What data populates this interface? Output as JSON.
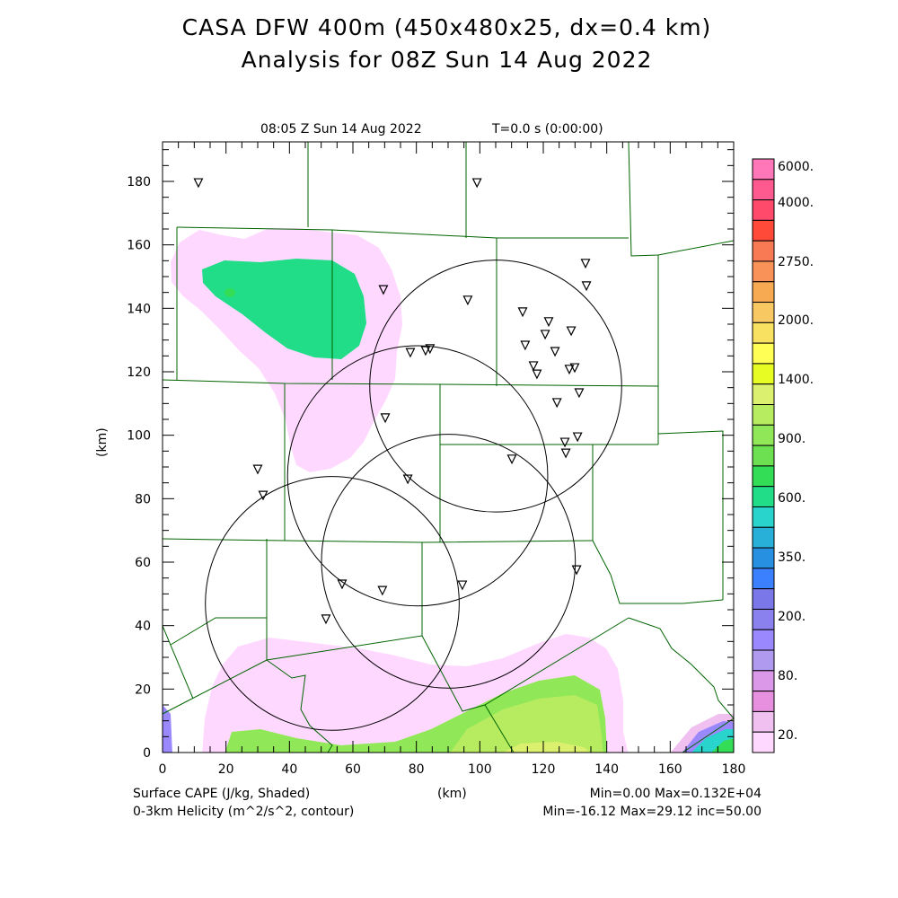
{
  "header": {
    "title_line1": "CASA DFW 400m (450x480x25, dx=0.4 km)",
    "title_line2": "Analysis for 08Z Sun 14 Aug 2022",
    "valid_time": "08:05 Z Sun 14 Aug 2022",
    "elapsed": "T=0.0 s (0:00:00)"
  },
  "footer": {
    "field1": "Surface CAPE (J/kg, Shaded)",
    "field2": "0-3km Helicity (m^2/s^2, contour)",
    "xunit": "(km)",
    "stats1": "Min=0.00 Max=0.132E+04",
    "stats2": "Min=-16.12 Max=29.12 inc=50.00"
  },
  "chart_data": {
    "type": "heatmap",
    "title": "CASA DFW 400m (450x480x25, dx=0.4 km) Analysis for 08Z Sun 14 Aug 2022",
    "xlabel": "(km)",
    "ylabel": "(km)",
    "xlim": [
      0,
      180
    ],
    "ylim": [
      0,
      192
    ],
    "xticks": [
      "0",
      "20",
      "40",
      "60",
      "80",
      "100",
      "120",
      "140",
      "160",
      "180"
    ],
    "yticks": [
      "0",
      "20",
      "40",
      "60",
      "80",
      "100",
      "120",
      "140",
      "160",
      "180"
    ],
    "shaded_field": "Surface CAPE (J/kg)",
    "shaded_min": 0.0,
    "shaded_max": 1320,
    "contour_field": "0-3km Helicity (m^2/s^2)",
    "contour_min": -16.12,
    "contour_max": 29.12,
    "contour_inc": 50.0,
    "colorbar": {
      "labels": [
        "6000.",
        "4000.",
        "2750.",
        "2000.",
        "1400.",
        "900.",
        "600.",
        "350.",
        "200.",
        "80.",
        "20."
      ],
      "colors": [
        "#ff77b8",
        "#ff5a90",
        "#ff4a6c",
        "#ff4a3a",
        "#f87a55",
        "#f89258",
        "#f8aa52",
        "#f8c862",
        "#f8e060",
        "#ffff55",
        "#e6fc22",
        "#dcf070",
        "#b8ec60",
        "#90e858",
        "#6ce050",
        "#33dd55",
        "#22dd88",
        "#28d4cc",
        "#28b0d8",
        "#2890e0",
        "#3a80ff",
        "#7a78e8",
        "#8a80ee",
        "#9a88ff",
        "#b09af0",
        "#dc98e8",
        "#e890e0",
        "#f0c0f0",
        "#ffd8ff"
      ]
    },
    "range_rings_km": [
      {
        "x": 105,
        "y": 115.5,
        "r": 39.7
      },
      {
        "x": 80.4,
        "y": 87.2,
        "r": 41
      },
      {
        "x": 90.1,
        "y": 60.3,
        "r": 40
      },
      {
        "x": 53.5,
        "y": 47.0,
        "r": 40
      }
    ],
    "stations_km": [
      [
        11.3,
        179.7
      ],
      [
        99.1,
        179.7
      ],
      [
        133.3,
        154.3
      ],
      [
        133.6,
        147.2
      ],
      [
        69.6,
        146.0
      ],
      [
        96.2,
        142.7
      ],
      [
        113.5,
        139.0
      ],
      [
        121.7,
        135.9
      ],
      [
        120.6,
        131.9
      ],
      [
        128.8,
        133.0
      ],
      [
        114.3,
        128.5
      ],
      [
        123.7,
        126.5
      ],
      [
        78.1,
        126.2
      ],
      [
        82.9,
        126.8
      ],
      [
        84.3,
        127.4
      ],
      [
        116.9,
        122.0
      ],
      [
        118.0,
        119.4
      ],
      [
        129.9,
        121.4
      ],
      [
        128.2,
        120.9
      ],
      [
        131.3,
        113.5
      ],
      [
        124.3,
        110.4
      ],
      [
        70.2,
        105.6
      ],
      [
        130.8,
        99.6
      ],
      [
        126.8,
        97.9
      ],
      [
        127.1,
        94.5
      ],
      [
        110.1,
        92.6
      ],
      [
        30.0,
        89.4
      ],
      [
        31.7,
        81.2
      ],
      [
        77.3,
        86.3
      ],
      [
        56.6,
        53.2
      ],
      [
        69.3,
        51.2
      ],
      [
        94.5,
        52.9
      ],
      [
        130.5,
        57.7
      ],
      [
        51.5,
        42.2
      ]
    ]
  }
}
